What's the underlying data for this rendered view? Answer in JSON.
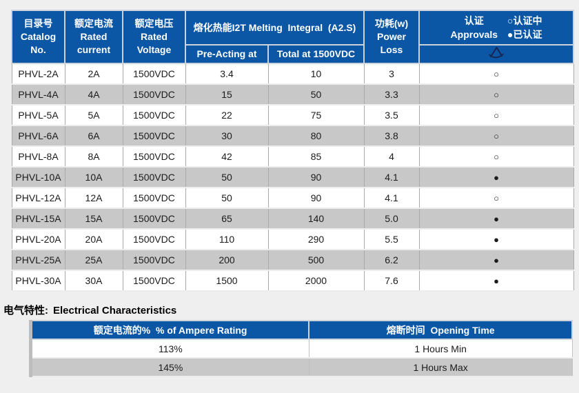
{
  "colors": {
    "header_blue": "#0b57a6",
    "row_alt_gray": "#c8c8c8",
    "page_bg": "#f0eff0",
    "logo_navy": "#17254e"
  },
  "main_table": {
    "headers": {
      "catalog_zh": "目录号",
      "catalog_en": "Catalog No.",
      "current_zh": "额定电流",
      "current_en_line1": "Rated",
      "current_en_line2": "current",
      "voltage_zh": "额定电压",
      "voltage_en_line1": "Rated",
      "voltage_en_line2": "Voltage",
      "melting": "熔化热能I2T Melting  Integral  (A2.S)",
      "pre_acting": "Pre-Acting at",
      "total": "Total at 1500VDC",
      "power_zh": "功耗(w)",
      "power_en": "Power Loss",
      "approvals_zh": "认证",
      "approvals_en": "Approvals",
      "legend_pending": "○认证中",
      "legend_approved": "●已认证"
    },
    "rows": [
      {
        "catalog": "PHVL-2A",
        "current": "2A",
        "voltage": "1500VDC",
        "pre_acting": "3.4",
        "total": "10",
        "power_loss": "3",
        "approval": "○"
      },
      {
        "catalog": "PHVL-4A",
        "current": "4A",
        "voltage": "1500VDC",
        "pre_acting": "15",
        "total": "50",
        "power_loss": "3.3",
        "approval": "○"
      },
      {
        "catalog": "PHVL-5A",
        "current": "5A",
        "voltage": "1500VDC",
        "pre_acting": "22",
        "total": "75",
        "power_loss": "3.5",
        "approval": "○"
      },
      {
        "catalog": "PHVL-6A",
        "current": "6A",
        "voltage": "1500VDC",
        "pre_acting": "30",
        "total": "80",
        "power_loss": "3.8",
        "approval": "○"
      },
      {
        "catalog": "PHVL-8A",
        "current": "8A",
        "voltage": "1500VDC",
        "pre_acting": "42",
        "total": "85",
        "power_loss": "4",
        "approval": "○"
      },
      {
        "catalog": "PHVL-10A",
        "current": "10A",
        "voltage": "1500VDC",
        "pre_acting": "50",
        "total": "90",
        "power_loss": "4.1",
        "approval": "●"
      },
      {
        "catalog": "PHVL-12A",
        "current": "12A",
        "voltage": "1500VDC",
        "pre_acting": "50",
        "total": "90",
        "power_loss": "4.1",
        "approval": "○"
      },
      {
        "catalog": "PHVL-15A",
        "current": "15A",
        "voltage": "1500VDC",
        "pre_acting": "65",
        "total": "140",
        "power_loss": "5.0",
        "approval": "●"
      },
      {
        "catalog": "PHVL-20A",
        "current": "20A",
        "voltage": "1500VDC",
        "pre_acting": "110",
        "total": "290",
        "power_loss": "5.5",
        "approval": "●"
      },
      {
        "catalog": "PHVL-25A",
        "current": "25A",
        "voltage": "1500VDC",
        "pre_acting": "200",
        "total": "500",
        "power_loss": "6.2",
        "approval": "●"
      },
      {
        "catalog": "PHVL-30A",
        "current": "30A",
        "voltage": "1500VDC",
        "pre_acting": "1500",
        "total": "2000",
        "power_loss": "7.6",
        "approval": "●"
      }
    ]
  },
  "section_title": {
    "zh": "电气特性:",
    "en": "Electrical Characteristics"
  },
  "char_table": {
    "headers": {
      "ampere_rating": "额定电流的%  % of Ampere Rating",
      "opening_time": "熔断时间  Opening Time"
    },
    "rows": [
      {
        "rating": "113%",
        "time": "1 Hours Min"
      },
      {
        "rating": "145%",
        "time": "1 Hours Max"
      }
    ]
  }
}
